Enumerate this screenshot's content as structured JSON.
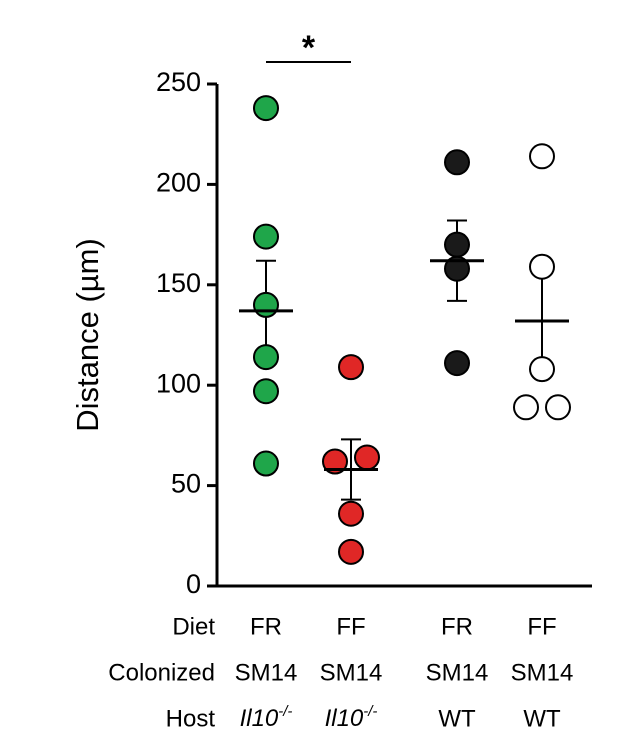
{
  "chart_data": {
    "type": "dot",
    "y_label": "Distance (µm)",
    "ylim": [
      0,
      250
    ],
    "yticks": [
      0,
      50,
      100,
      150,
      200,
      250
    ],
    "groups": [
      {
        "color": "#1fa64a",
        "values": [
          238,
          174,
          140,
          114,
          97,
          61
        ],
        "mean": 137,
        "sem": 25
      },
      {
        "color": "#e02726",
        "values": [
          109,
          62,
          64,
          36,
          17
        ],
        "mean": 58,
        "sem": 15
      },
      {
        "color": "#1a1a1a",
        "values": [
          211,
          170,
          158,
          111
        ],
        "mean": 162,
        "sem": 20
      },
      {
        "color": "#ffffff",
        "values": [
          214,
          159,
          108,
          89,
          89
        ],
        "mean": 132,
        "sem": 24
      }
    ],
    "label_rows": [
      {
        "header": "Diet",
        "labels": [
          "FR",
          "FF",
          "FR",
          "FF"
        ]
      },
      {
        "header": "Colonized",
        "labels": [
          "SM14",
          "SM14",
          "SM14",
          "SM14"
        ]
      },
      {
        "header": "Host",
        "labels": [
          {
            "text": "Il10",
            "superscript": "-/-"
          },
          {
            "text": "Il10",
            "superscript": "-/-"
          },
          "WT",
          "WT"
        ]
      }
    ],
    "annotations": [
      {
        "text": "*",
        "between": [
          0,
          1
        ]
      }
    ]
  }
}
